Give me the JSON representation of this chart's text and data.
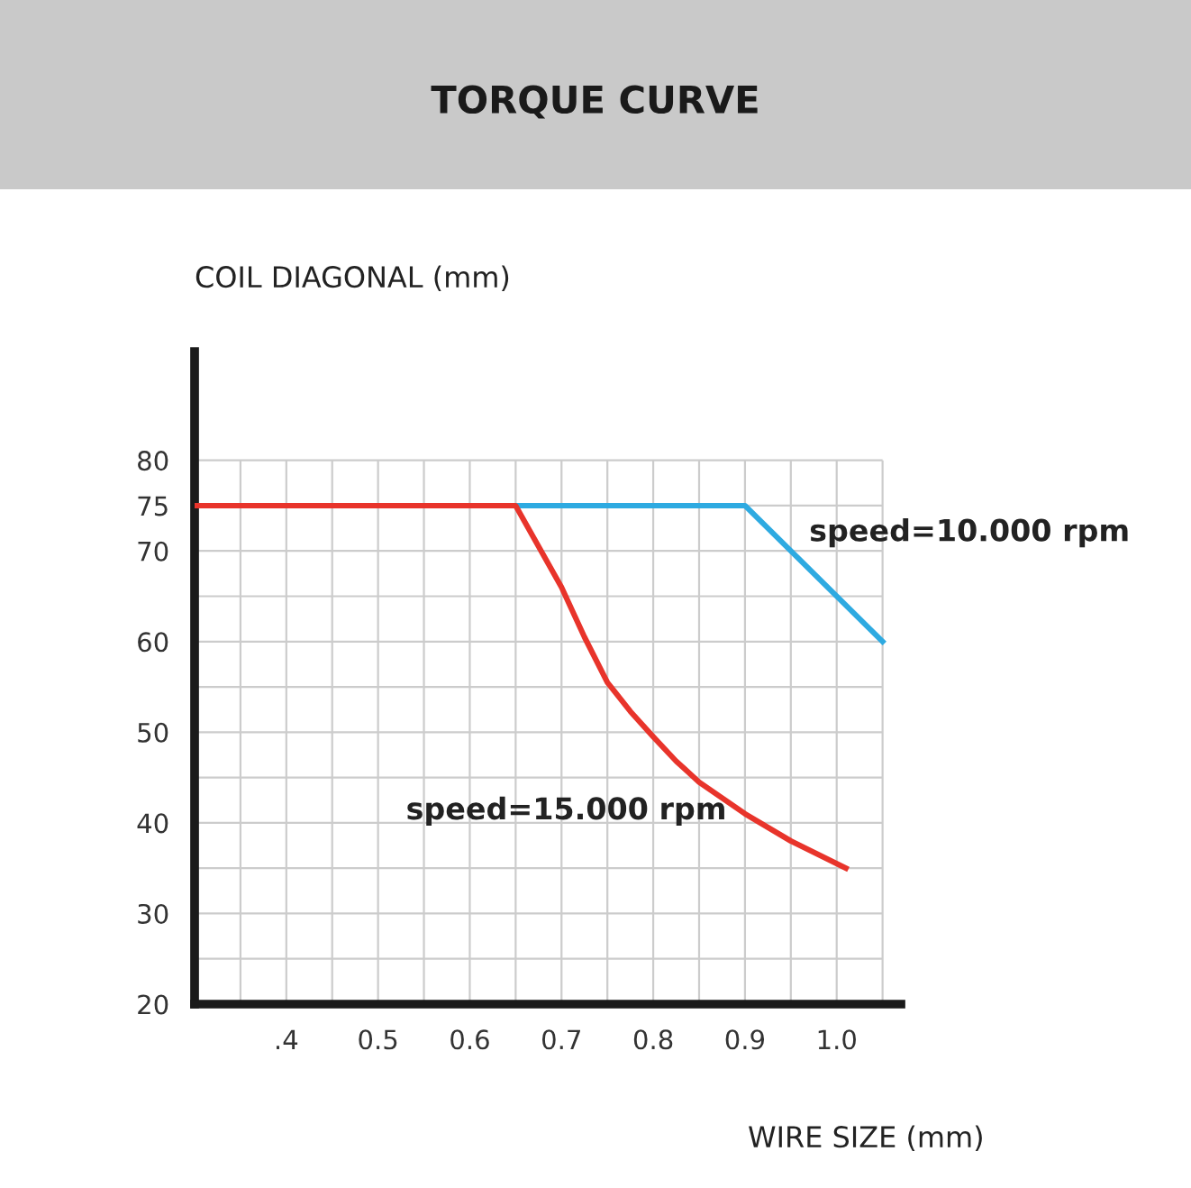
{
  "chart_data": {
    "type": "line",
    "title": "TORQUE CURVE",
    "xlabel": "WIRE SIZE (mm)",
    "ylabel": "COIL DIAGONAL (mm)",
    "series": [
      {
        "name": "speed=10.000 rpm",
        "color": "#2eaae1",
        "x": [
          0.65,
          0.9,
          1.05
        ],
        "values": [
          75,
          75,
          60
        ]
      },
      {
        "name": "speed=15.000 rpm",
        "color": "#e8342b",
        "x": [
          0.3,
          0.65,
          0.675,
          0.7,
          0.725,
          0.75,
          0.775,
          0.8,
          0.825,
          0.85,
          0.9,
          0.95,
          1.01
        ],
        "values": [
          75,
          75,
          70.5,
          66,
          60.5,
          55.5,
          52.3,
          49.5,
          46.8,
          44.5,
          41,
          38,
          35
        ]
      }
    ],
    "xlim": [
      0.3,
      1.07
    ],
    "ylim": [
      20,
      92
    ],
    "xticks": [
      {
        "value": 0.35,
        "label": null
      },
      {
        "value": 0.4,
        "label": ".4"
      },
      {
        "value": 0.45,
        "label": null
      },
      {
        "value": 0.5,
        "label": "0.5"
      },
      {
        "value": 0.55,
        "label": null
      },
      {
        "value": 0.6,
        "label": "0.6"
      },
      {
        "value": 0.65,
        "label": null
      },
      {
        "value": 0.7,
        "label": "0.7"
      },
      {
        "value": 0.75,
        "label": null
      },
      {
        "value": 0.8,
        "label": "0.8"
      },
      {
        "value": 0.85,
        "label": null
      },
      {
        "value": 0.9,
        "label": "0.9"
      },
      {
        "value": 0.95,
        "label": null
      },
      {
        "value": 1.0,
        "label": "1.0"
      },
      {
        "value": 1.05,
        "label": null
      }
    ],
    "yticks": [
      20,
      {
        "value": 25,
        "label": null
      },
      30,
      {
        "value": 35,
        "label": null
      },
      40,
      {
        "value": 45,
        "label": null
      },
      50,
      {
        "value": 55,
        "label": null
      },
      60,
      {
        "value": 65,
        "label": null
      },
      70,
      75,
      80
    ],
    "grid": true,
    "legend": false,
    "marker": "none",
    "line_style": "solid"
  }
}
